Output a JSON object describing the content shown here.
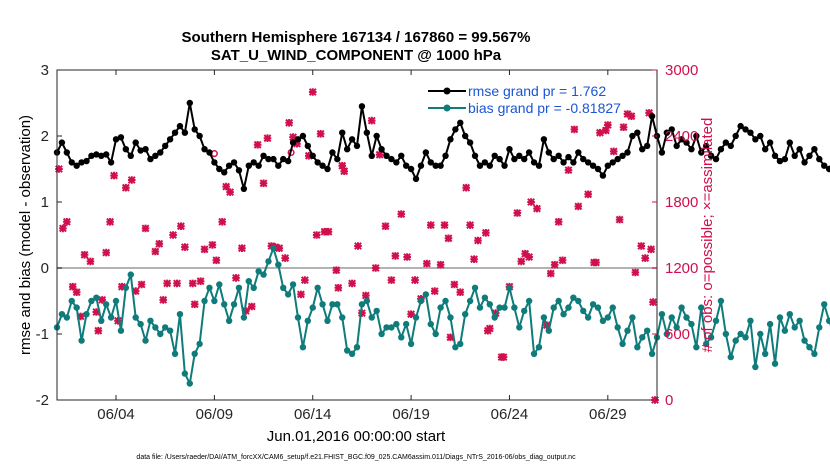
{
  "chart_data": {
    "type": "line",
    "title": "Southern Hemisphere 167134 / 167860 = 99.567%",
    "subtitle": "SAT_U_WIND_COMPONENT @ 1000 hPa",
    "xlabel": "Jun.01,2016 00:00:00 start",
    "ylabel_left": "rmse and bias (model - observation)",
    "ylabel_right": "# of obs: o=possible; ×=assimilated",
    "xlim": [
      1.0,
      31.5
    ],
    "ylim_left": [
      -2,
      3
    ],
    "ylim_right": [
      0,
      3000
    ],
    "x_tick_values": [
      4,
      9,
      14,
      19,
      24,
      29
    ],
    "x_tick_labels": [
      "06/04",
      "06/09",
      "06/14",
      "06/19",
      "06/24",
      "06/29"
    ],
    "y_tick_labels_left": [
      "-2",
      "-1",
      "0",
      "1",
      "2",
      "3"
    ],
    "y_tick_labels_right": [
      "0",
      "600",
      "1200",
      "1800",
      "2400",
      "3000"
    ],
    "footnote": "data file: /Users/raeder/DAI/ATM_forcXX/CAM6_setup/f.e21.FHIST_BGC.f09_025.CAM6assim.011/Diags_NTrS_2016-06/obs_diag_output.nc",
    "colors": {
      "rmse": "#000000",
      "bias": "#0f7b7b",
      "obs": "#d0104c",
      "zero_line": "#b3b3b3",
      "legend_text": "#1a55d6"
    },
    "series": [
      {
        "name": "rmse grand pr = 1.762",
        "axis": "left",
        "x0": 1.0,
        "dx": 0.25,
        "values": [
          1.75,
          1.9,
          1.75,
          1.6,
          1.55,
          1.6,
          1.62,
          1.7,
          1.72,
          1.7,
          1.72,
          1.6,
          1.95,
          1.98,
          1.8,
          1.7,
          1.9,
          1.78,
          1.8,
          1.65,
          1.7,
          1.75,
          1.85,
          1.95,
          2.05,
          2.15,
          2.05,
          2.5,
          2.1,
          2.0,
          1.8,
          1.75,
          1.6,
          1.5,
          1.45,
          1.55,
          1.6,
          1.48,
          1.2,
          1.55,
          1.6,
          1.55,
          1.7,
          1.65,
          1.65,
          1.55,
          1.65,
          1.62,
          1.9,
          1.95,
          2.0,
          1.85,
          1.7,
          1.6,
          1.55,
          1.5,
          1.75,
          1.65,
          2.05,
          1.8,
          1.95,
          1.85,
          2.45,
          2.05,
          1.7,
          2.0,
          1.8,
          1.7,
          1.65,
          1.6,
          1.7,
          1.55,
          1.5,
          1.35,
          1.55,
          1.75,
          1.6,
          1.55,
          1.55,
          1.7,
          1.95,
          2.1,
          2.2,
          2.0,
          1.9,
          1.7,
          1.55,
          1.6,
          1.55,
          1.7,
          1.65,
          1.55,
          1.8,
          1.65,
          1.7,
          1.65,
          1.75,
          1.6,
          1.55,
          1.95,
          1.75,
          1.65,
          1.7,
          1.6,
          1.68,
          1.6,
          1.75,
          1.65,
          1.6,
          1.55,
          1.5,
          1.4,
          1.55,
          1.6,
          1.65,
          1.7,
          1.75,
          2.0,
          2.05,
          1.8,
          1.85,
          2.3,
          2.0,
          1.75,
          2.05,
          2.1,
          1.85,
          1.95,
          1.9,
          1.8,
          2.0,
          1.75,
          1.85,
          1.7,
          1.65,
          1.8,
          1.9,
          1.85,
          2.0,
          2.15,
          2.1,
          2.05,
          1.95,
          2.0,
          1.8,
          1.9,
          1.7,
          1.62,
          1.65,
          1.9,
          1.7,
          1.8,
          1.6,
          1.7,
          1.8,
          1.65,
          1.55,
          1.5,
          1.65,
          1.75,
          1.9
        ]
      },
      {
        "name": "bias grand pr = -0.81827",
        "axis": "left",
        "x0": 1.0,
        "dx": 0.25,
        "values": [
          -0.9,
          -0.7,
          -0.75,
          -0.5,
          -0.6,
          -1.1,
          -0.7,
          -0.5,
          -0.45,
          -0.8,
          -0.55,
          -0.75,
          -0.5,
          -0.95,
          -0.3,
          -0.1,
          -0.75,
          -0.85,
          -1.1,
          -0.8,
          -0.9,
          -1.0,
          -0.9,
          -0.95,
          -1.3,
          -0.7,
          -1.6,
          -1.75,
          -1.3,
          -1.15,
          -0.5,
          -0.3,
          -0.5,
          -0.25,
          -0.55,
          -0.8,
          -0.55,
          -0.3,
          -0.75,
          -0.2,
          -0.3,
          -0.05,
          -0.1,
          0.1,
          0.3,
          0.05,
          -0.3,
          -0.4,
          -0.25,
          -0.75,
          -1.2,
          -0.8,
          -0.6,
          -0.3,
          -0.55,
          -0.8,
          -0.55,
          -0.55,
          -0.75,
          -1.25,
          -1.3,
          -1.2,
          -0.55,
          -0.5,
          -0.75,
          -0.65,
          -1.0,
          -0.9,
          -0.9,
          -0.85,
          -1.05,
          -0.85,
          -1.15,
          -0.75,
          -0.5,
          -0.4,
          -0.85,
          -1.0,
          -0.6,
          -0.5,
          -0.75,
          -1.2,
          -1.15,
          -0.7,
          -0.5,
          -0.3,
          -0.6,
          -0.45,
          -0.55,
          -0.75,
          -0.6,
          -0.6,
          -0.3,
          -0.6,
          -0.9,
          -0.65,
          -0.5,
          -1.3,
          -1.2,
          -0.75,
          -0.95,
          -0.6,
          -0.5,
          -0.7,
          -0.6,
          -0.45,
          -0.5,
          -0.65,
          -0.75,
          -0.55,
          -0.6,
          -0.8,
          -0.75,
          -0.6,
          -0.9,
          -1.15,
          -0.95,
          -0.75,
          -1.2,
          -1.05,
          -0.95,
          -1.3,
          -1.05,
          -0.7,
          -1.0,
          -0.75,
          -0.9,
          -0.6,
          -0.75,
          -0.85,
          -1.2,
          -0.6,
          -1.15,
          -1.05,
          -0.8,
          -0.5,
          -1.0,
          -1.35,
          -1.1,
          -1.0,
          -1.05,
          -0.8,
          -1.5,
          -1.0,
          -1.3,
          -0.85,
          -1.45,
          -0.75,
          -0.95,
          -0.7,
          -0.9,
          -0.8,
          -1.1,
          -1.2,
          -1.3,
          -0.9,
          -0.55,
          -0.8,
          -1.0,
          -1.35,
          -1.1,
          -0.9,
          -1.05,
          -1.45
        ]
      },
      {
        "name": "obs assimilated",
        "axis": "right",
        "points": [
          [
            1.1,
            2100
          ],
          [
            1.3,
            1560
          ],
          [
            1.5,
            1620
          ],
          [
            1.8,
            1030
          ],
          [
            2.0,
            980
          ],
          [
            2.2,
            760
          ],
          [
            2.4,
            1320
          ],
          [
            2.7,
            1260
          ],
          [
            3.0,
            800
          ],
          [
            3.1,
            630
          ],
          [
            3.3,
            910
          ],
          [
            3.5,
            1340
          ],
          [
            3.7,
            1620
          ],
          [
            3.9,
            2040
          ],
          [
            4.1,
            720
          ],
          [
            4.3,
            1030
          ],
          [
            4.5,
            1930
          ],
          [
            4.8,
            2000
          ],
          [
            5.0,
            990
          ],
          [
            5.3,
            1050
          ],
          [
            5.5,
            1560
          ],
          [
            6.0,
            1350
          ],
          [
            6.2,
            1420
          ],
          [
            6.4,
            910
          ],
          [
            6.6,
            1060
          ],
          [
            6.9,
            1500
          ],
          [
            7.1,
            1060
          ],
          [
            7.3,
            1580
          ],
          [
            7.5,
            1390
          ],
          [
            7.9,
            1060
          ],
          [
            8.0,
            870
          ],
          [
            8.3,
            1080
          ],
          [
            8.5,
            1370
          ],
          [
            8.9,
            1410
          ],
          [
            9.1,
            1270
          ],
          [
            9.4,
            1620
          ],
          [
            9.6,
            1940
          ],
          [
            9.8,
            1890
          ],
          [
            10.1,
            1110
          ],
          [
            10.4,
            1380
          ],
          [
            10.6,
            810
          ],
          [
            10.9,
            850
          ],
          [
            11.2,
            2320
          ],
          [
            11.5,
            1970
          ],
          [
            11.7,
            2380
          ],
          [
            11.9,
            1400
          ],
          [
            12.1,
            1390
          ],
          [
            12.3,
            1380
          ],
          [
            12.6,
            1290
          ],
          [
            12.8,
            2520
          ],
          [
            13.0,
            2390
          ],
          [
            13.2,
            2330
          ],
          [
            13.4,
            960
          ],
          [
            13.6,
            1090
          ],
          [
            13.8,
            2220
          ],
          [
            14.0,
            2800
          ],
          [
            14.2,
            1500
          ],
          [
            14.4,
            2420
          ],
          [
            14.6,
            1530
          ],
          [
            14.8,
            1530
          ],
          [
            15.2,
            1180
          ],
          [
            15.3,
            1020
          ],
          [
            15.5,
            2130
          ],
          [
            15.6,
            2080
          ],
          [
            16.0,
            1060
          ],
          [
            16.3,
            1400
          ],
          [
            16.5,
            790
          ],
          [
            16.7,
            950
          ],
          [
            17.0,
            2540
          ],
          [
            17.2,
            1200
          ],
          [
            17.4,
            2230
          ],
          [
            17.7,
            1580
          ],
          [
            18.0,
            1090
          ],
          [
            18.2,
            1310
          ],
          [
            18.5,
            1690
          ],
          [
            18.8,
            1300
          ],
          [
            19.0,
            780
          ],
          [
            19.2,
            1090
          ],
          [
            19.5,
            920
          ],
          [
            19.8,
            1240
          ],
          [
            20.0,
            1590
          ],
          [
            20.2,
            990
          ],
          [
            20.5,
            1230
          ],
          [
            20.7,
            1590
          ],
          [
            20.9,
            1470
          ],
          [
            21.0,
            570
          ],
          [
            21.2,
            1050
          ],
          [
            21.5,
            980
          ],
          [
            21.8,
            1930
          ],
          [
            22.0,
            1590
          ],
          [
            22.2,
            1280
          ],
          [
            22.4,
            1450
          ],
          [
            22.8,
            1520
          ],
          [
            22.9,
            630
          ],
          [
            23.0,
            650
          ],
          [
            23.3,
            790
          ],
          [
            23.6,
            390
          ],
          [
            23.7,
            390
          ],
          [
            24.0,
            1030
          ],
          [
            24.4,
            1700
          ],
          [
            24.6,
            1260
          ],
          [
            24.8,
            1330
          ],
          [
            25.0,
            1300
          ],
          [
            25.1,
            1800
          ],
          [
            25.4,
            1740
          ],
          [
            25.9,
            680
          ],
          [
            26.1,
            1150
          ],
          [
            26.3,
            1230
          ],
          [
            26.5,
            1620
          ],
          [
            26.7,
            1270
          ],
          [
            27.0,
            2090
          ],
          [
            27.3,
            2460
          ],
          [
            27.5,
            1760
          ],
          [
            28.0,
            1870
          ],
          [
            28.3,
            1250
          ],
          [
            28.4,
            1250
          ],
          [
            28.6,
            2430
          ],
          [
            28.9,
            2450
          ],
          [
            29.0,
            2500
          ],
          [
            29.3,
            2260
          ],
          [
            29.6,
            1640
          ],
          [
            29.8,
            2480
          ],
          [
            30.0,
            2600
          ],
          [
            30.2,
            2580
          ],
          [
            30.4,
            1160
          ],
          [
            30.7,
            1400
          ],
          [
            30.9,
            1290
          ],
          [
            31.1,
            2610
          ],
          [
            31.2,
            1370
          ],
          [
            31.3,
            890
          ],
          [
            31.4,
            0
          ]
        ]
      },
      {
        "name": "obs possible",
        "axis": "right",
        "points": [
          [
            9.0,
            2240
          ],
          [
            12.9,
            2250
          ]
        ]
      }
    ]
  }
}
